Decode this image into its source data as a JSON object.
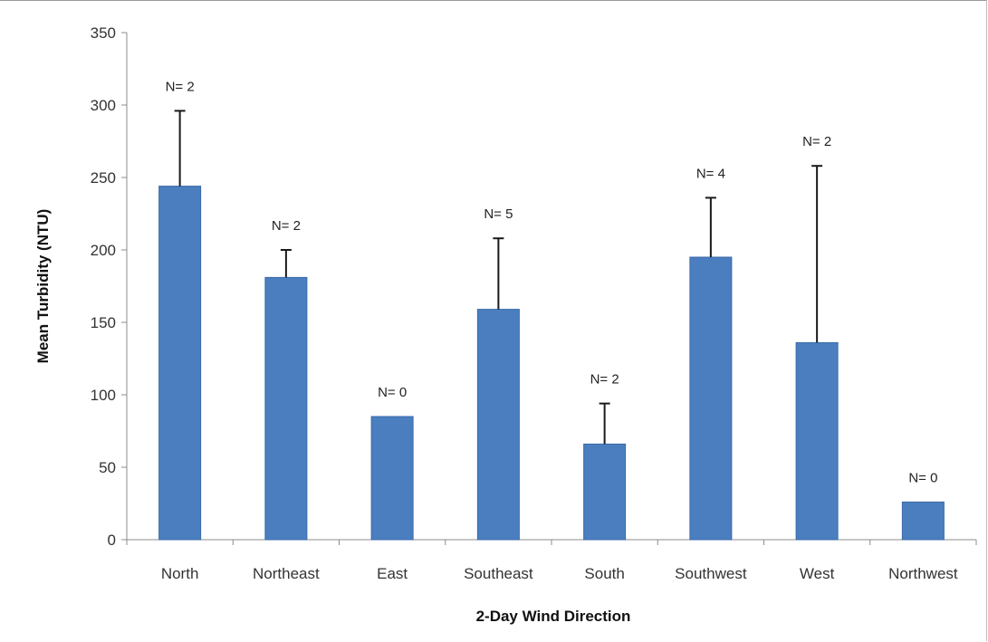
{
  "chart_data": {
    "type": "bar",
    "title": "",
    "xlabel": "2-Day Wind Direction",
    "ylabel": "Mean Turbidity (NTU)",
    "categories": [
      "North",
      "Northeast",
      "East",
      "Southeast",
      "South",
      "Southwest",
      "West",
      "Northwest"
    ],
    "values": [
      244,
      181,
      85,
      159,
      66,
      195,
      136,
      26
    ],
    "error_upper": [
      296,
      200,
      null,
      208,
      94,
      236,
      258,
      null
    ],
    "data_labels": [
      "N= 2",
      "N= 2",
      "N= 0",
      "N= 5",
      "N= 2",
      "N= 4",
      "N= 2",
      "N= 0"
    ],
    "ylim": [
      0,
      350
    ],
    "yticks": [
      0,
      50,
      100,
      150,
      200,
      250,
      300,
      350
    ],
    "grid": false,
    "legend": "none",
    "colors": {
      "bar": "#4a7ebf",
      "bar_edge": "#3a6aa8",
      "error_bar": "#1a1a1a",
      "axis": "#8c8c8c"
    }
  }
}
